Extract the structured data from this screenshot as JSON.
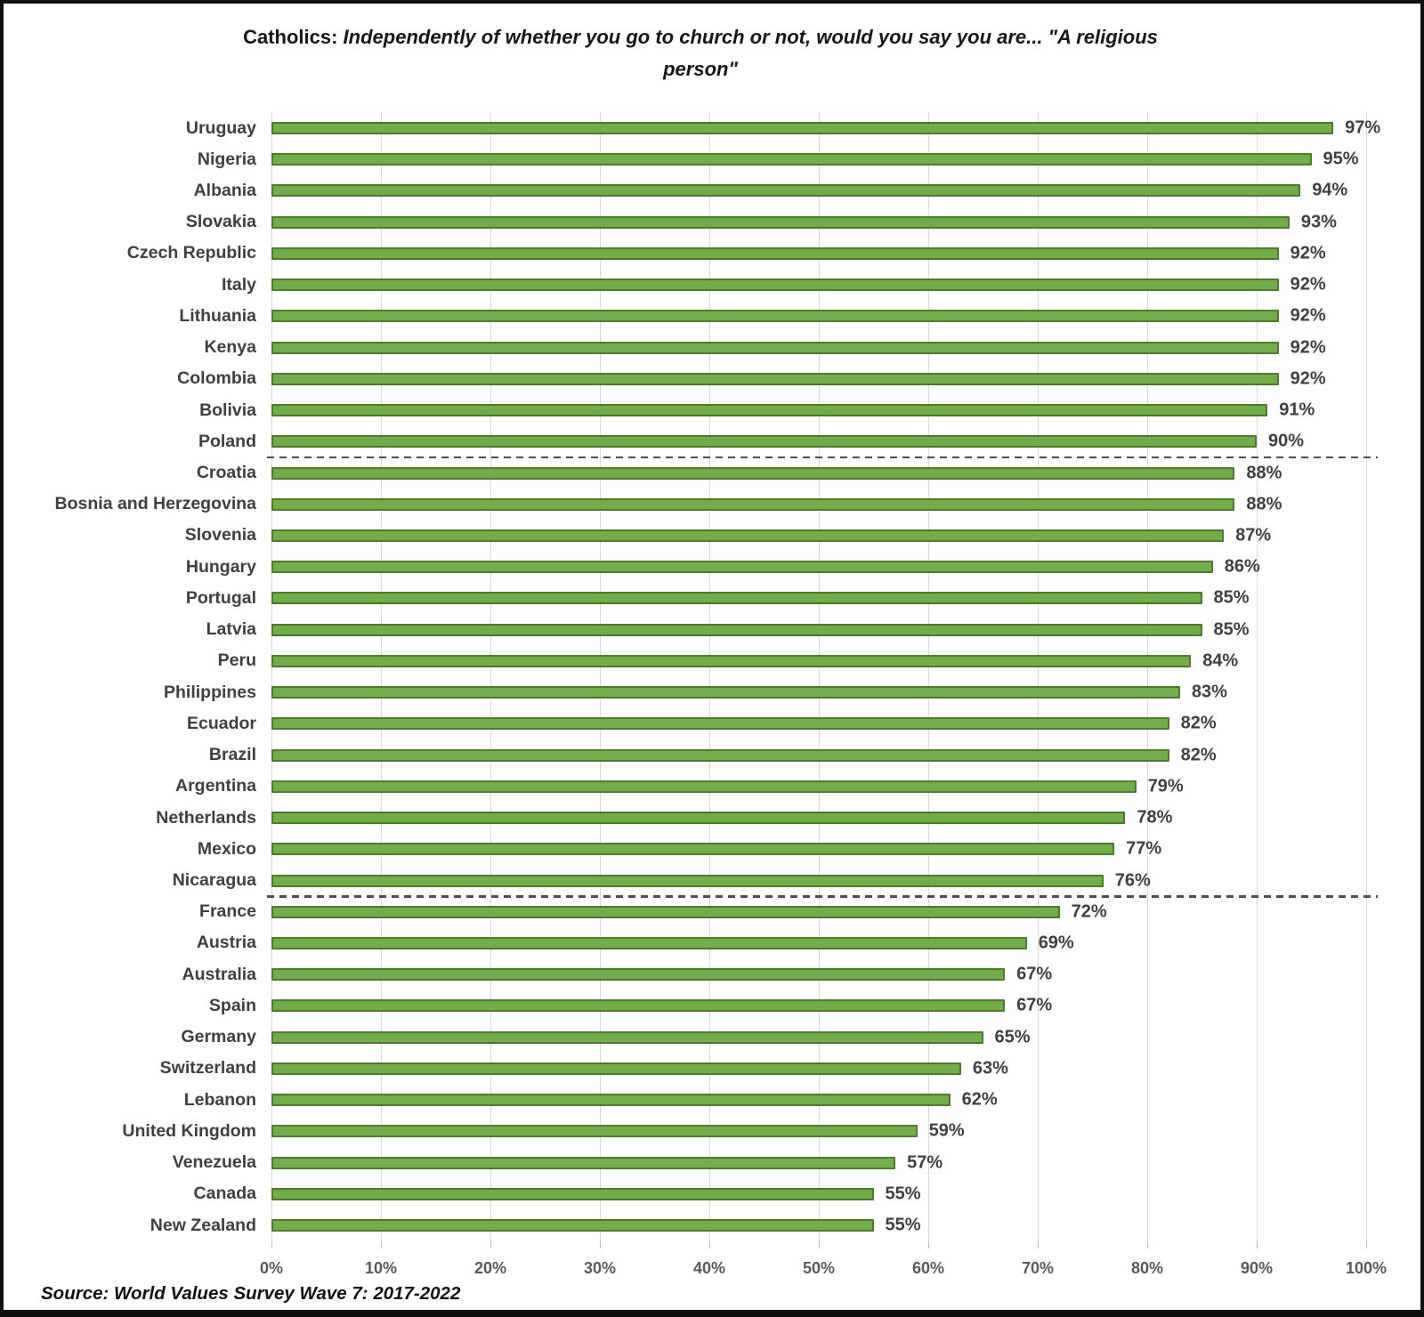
{
  "title": {
    "prefix": "Catholics:",
    "line1_italic": "Independently of whether you go to church or not, would you say you are... \"A religious",
    "line2_italic": "person\""
  },
  "source": "Source: World Values Survey Wave 7: 2017-2022",
  "chart_data": {
    "type": "bar",
    "orientation": "horizontal",
    "title": "Catholics: Independently of whether you go to church or not, would you say you are... \"A religious person\"",
    "categories": [
      "Uruguay",
      "Nigeria",
      "Albania",
      "Slovakia",
      "Czech Republic",
      "Italy",
      "Lithuania",
      "Kenya",
      "Colombia",
      "Bolivia",
      "Poland",
      "Croatia",
      "Bosnia and Herzegovina",
      "Slovenia",
      "Hungary",
      "Portugal",
      "Latvia",
      "Peru",
      "Philippines",
      "Ecuador",
      "Brazil",
      "Argentina",
      "Netherlands",
      "Mexico",
      "Nicaragua",
      "France",
      "Austria",
      "Australia",
      "Spain",
      "Germany",
      "Switzerland",
      "Lebanon",
      "United Kingdom",
      "Venezuela",
      "Canada",
      "New Zealand"
    ],
    "values": [
      97,
      95,
      94,
      93,
      92,
      92,
      92,
      92,
      92,
      91,
      90,
      88,
      88,
      87,
      86,
      85,
      85,
      84,
      83,
      82,
      82,
      79,
      78,
      77,
      76,
      72,
      69,
      67,
      67,
      65,
      63,
      62,
      59,
      57,
      55,
      55
    ],
    "value_suffix": "%",
    "xlim": [
      0,
      100
    ],
    "x_ticks": [
      "0%",
      "10%",
      "20%",
      "30%",
      "40%",
      "50%",
      "60%",
      "70%",
      "80%",
      "90%",
      "100%"
    ],
    "grid": "vertical",
    "separators_after": [
      "Poland",
      "Nicaragua"
    ],
    "bar_fill_color": "#71ae49",
    "bar_border_color": "#4e7a2e",
    "gridline_color": "#d9d9d9",
    "separator_color": "#4d4d4d",
    "label_color": "#3f3f3f",
    "value_color": "#404040",
    "tick_color": "#595959",
    "legend": null
  }
}
